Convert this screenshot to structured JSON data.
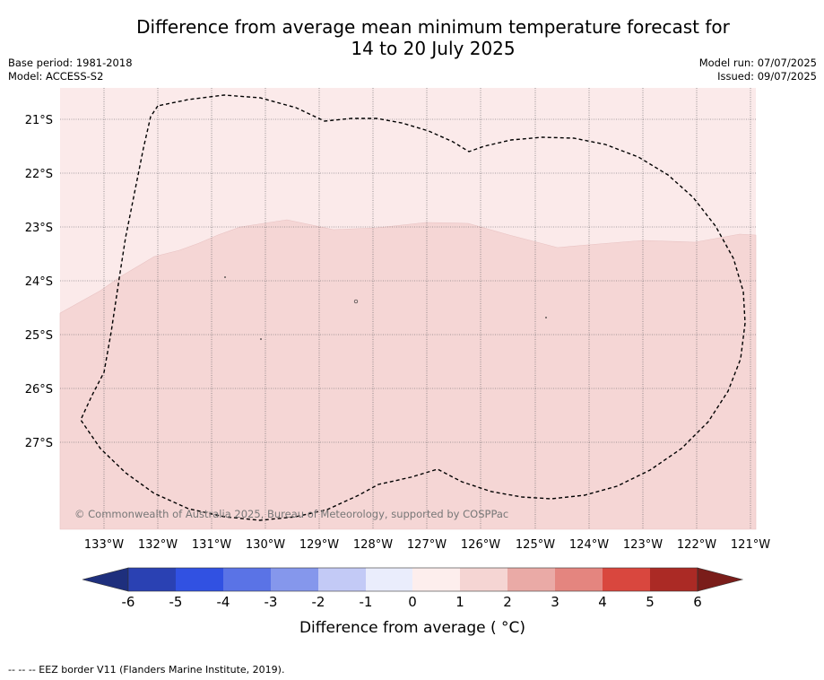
{
  "title": {
    "line1": "Difference from average mean minimum temperature forecast for",
    "line2": "14 to 20 July 2025"
  },
  "meta_left": {
    "base_period": "Base period: 1981-2018",
    "model": "Model: ACCESS-S2"
  },
  "meta_right": {
    "model_run": "Model run: 07/07/2025",
    "issued": "Issued: 09/07/2025"
  },
  "map": {
    "lon_labels": [
      "133°W",
      "132°W",
      "131°W",
      "130°W",
      "129°W",
      "128°W",
      "127°W",
      "126°W",
      "125°W",
      "124°W",
      "123°W",
      "122°W",
      "121°W"
    ],
    "lat_labels": [
      "21°S",
      "22°S",
      "23°S",
      "24°S",
      "25°S",
      "26°S",
      "27°S"
    ],
    "copyright": "© Commonwealth of Australia 2025, Bureau of Meteorology, supported by COSPPac",
    "fill_colors": {
      "bin_0_1": "#fbeaea",
      "bin_1_2": "#f5d6d5"
    }
  },
  "colorbar": {
    "tick_labels": [
      "-6",
      "-5",
      "-4",
      "-3",
      "-2",
      "-1",
      "0",
      "1",
      "2",
      "3",
      "4",
      "5",
      "6"
    ],
    "label": "Difference from average ( °C)",
    "colors": [
      "#1e2f7d",
      "#2a41b3",
      "#3151e2",
      "#5a73e6",
      "#8597ec",
      "#c3caf6",
      "#eaedfc",
      "#fdeeed",
      "#f5d5d3",
      "#eaaaa6",
      "#e4857f",
      "#d9473e",
      "#ab2a25",
      "#7a1d1a"
    ]
  },
  "footer": "--  --  -- EEZ border V11 (Flanders Marine Institute, 2019)."
}
